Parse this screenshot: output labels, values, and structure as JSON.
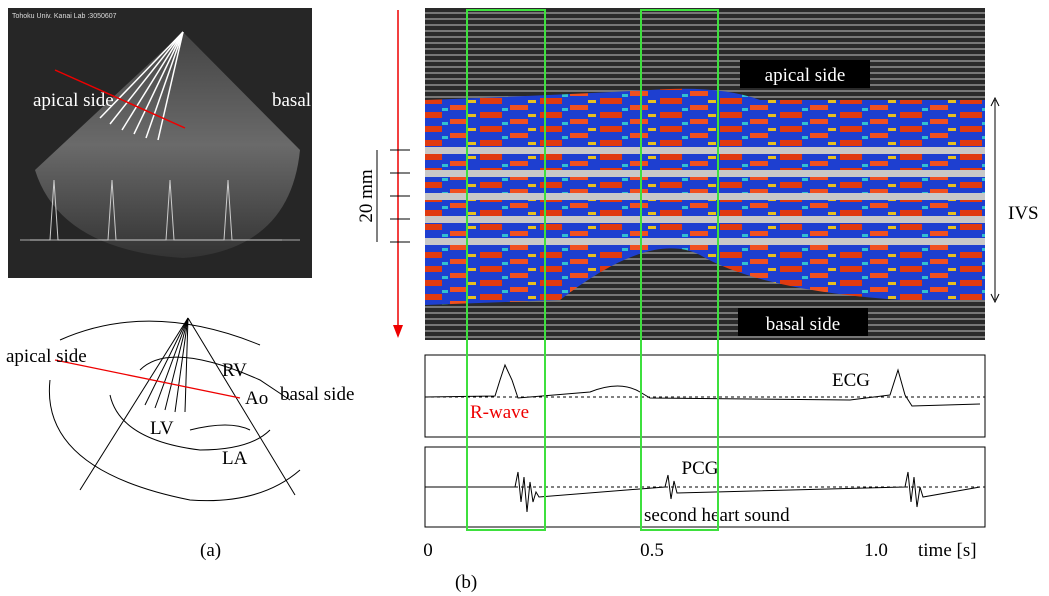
{
  "panel_a": {
    "header": "Tohoku Univ. Kanai Lab :3050607",
    "image_labels": [
      "apical side",
      "basal side"
    ],
    "diagram_labels": [
      "apical side",
      "RV",
      "Ao",
      "basal side",
      "LV",
      "LA"
    ],
    "caption": "(a)"
  },
  "panel_b": {
    "labels": [
      "apical side",
      "basal side"
    ],
    "scale": "20 mm",
    "region": "IVS",
    "ecg": {
      "title": "ECG",
      "annotation": "R-wave"
    },
    "pcg": {
      "title": "PCG",
      "annotation": "second heart sound"
    },
    "time_axis": {
      "ticks": [
        "0",
        "0.5",
        "1.0"
      ],
      "label": "time [s]"
    },
    "caption": "(b)"
  }
}
